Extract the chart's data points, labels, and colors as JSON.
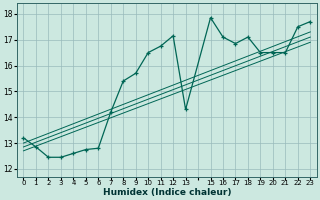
{
  "xlabel": "Humidex (Indice chaleur)",
  "background_color": "#cce8e0",
  "grid_color": "#99bbbb",
  "line_color": "#006655",
  "xlim": [
    -0.5,
    23.5
  ],
  "ylim": [
    11.7,
    18.4
  ],
  "yticks": [
    12,
    13,
    14,
    15,
    16,
    17,
    18
  ],
  "xtick_labels": [
    "0",
    "1",
    "2",
    "3",
    "4",
    "5",
    "6",
    "7",
    "8",
    "9",
    "10",
    "11",
    "12",
    "13",
    "",
    "15",
    "16",
    "17",
    "18",
    "19",
    "20",
    "21",
    "22",
    "23"
  ],
  "main_x": [
    0,
    1,
    2,
    3,
    4,
    5,
    6,
    7,
    8,
    9,
    10,
    11,
    12,
    13,
    15,
    16,
    17,
    18,
    19,
    20,
    21,
    22,
    23
  ],
  "main_y": [
    13.2,
    12.85,
    12.45,
    12.45,
    12.6,
    12.75,
    12.8,
    14.2,
    15.4,
    15.7,
    16.5,
    16.75,
    17.15,
    14.3,
    17.85,
    17.1,
    16.85,
    17.1,
    16.5,
    16.5,
    16.5,
    17.5,
    17.7
  ],
  "reg_lines": [
    {
      "x": [
        0,
        23
      ],
      "y": [
        12.7,
        16.9
      ]
    },
    {
      "x": [
        0,
        23
      ],
      "y": [
        12.85,
        17.1
      ]
    },
    {
      "x": [
        0,
        23
      ],
      "y": [
        13.0,
        17.3
      ]
    }
  ]
}
